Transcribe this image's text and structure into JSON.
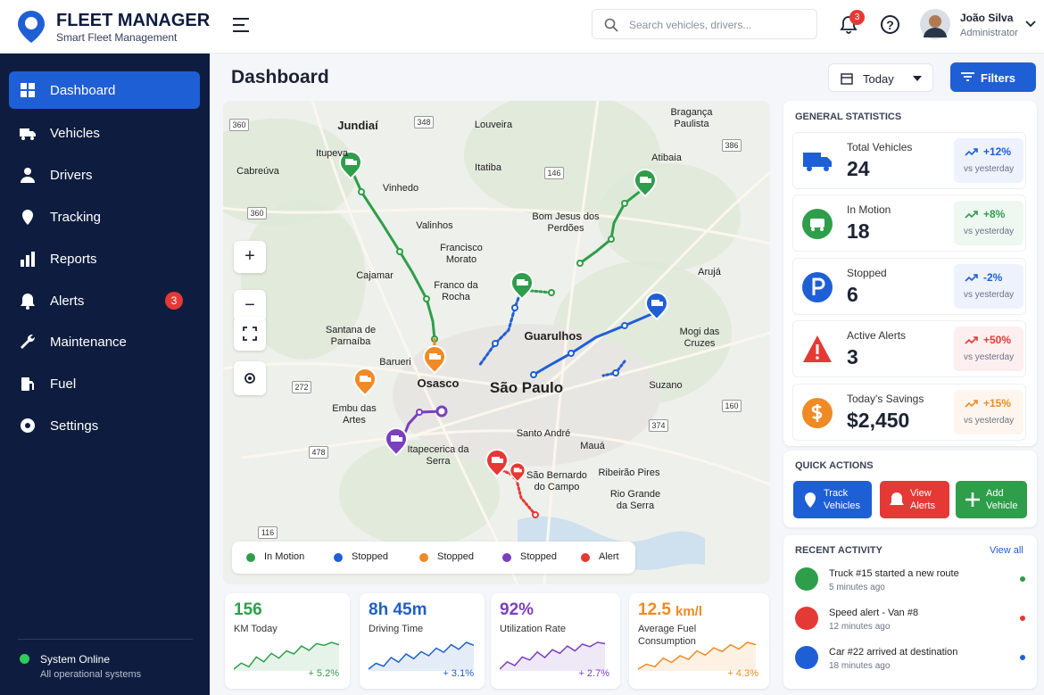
{
  "brand": {
    "title": "FLEET MANAGER",
    "subtitle": "Smart Fleet Management"
  },
  "header": {
    "search_placeholder": "Search vehicles, drivers...",
    "notifications": 3,
    "user_name": "João Silva",
    "user_role": "Administrator"
  },
  "nav": [
    {
      "label": "Dashboard"
    },
    {
      "label": "Vehicles"
    },
    {
      "label": "Drivers"
    },
    {
      "label": "Tracking"
    },
    {
      "label": "Reports"
    },
    {
      "label": "Alerts",
      "badge": 3
    },
    {
      "label": "Maintenance"
    },
    {
      "label": "Fuel"
    },
    {
      "label": "Settings"
    }
  ],
  "system_status": {
    "title": "System Online",
    "subtitle": "All operational systems"
  },
  "page_title": "Dashboard",
  "date_filter": "Today",
  "filters": "Filters",
  "map": {
    "places": [
      "Jundiaí",
      "Louveira",
      "Bragança Paulista",
      "Itupeva",
      "Cabreúva",
      "Itatiba",
      "Vinhedo",
      "Atibaia",
      "Valinhos",
      "Bom Jesus dos Perdões",
      "Francisco Morato",
      "Cajamar",
      "Arujá",
      "Franco da Rocha",
      "Santana de Parnaíba",
      "Guarulhos",
      "Mogi das Cruzes",
      "Barueri",
      "Osasco",
      "São Paulo",
      "Suzano",
      "Embu das Artes",
      "Itapecerica da Serra",
      "Santo André",
      "Mauá",
      "São Bernardo do Campo",
      "Ribeirão Pires",
      "Rio Grande da Serra"
    ],
    "roads": [
      360,
      348,
      146,
      386,
      360,
      272,
      160,
      374,
      478,
      116
    ],
    "legend": [
      {
        "label": "In Motion",
        "color": "#2e9e4a"
      },
      {
        "label": "Stopped",
        "color": "#1f5fd6"
      },
      {
        "label": "Stopped",
        "color": "#f08a24"
      },
      {
        "label": "Stopped",
        "color": "#7b3fbf"
      },
      {
        "label": "Alert",
        "color": "#e53935"
      }
    ]
  },
  "kpis": [
    {
      "value": "156",
      "label": "KM Today",
      "change": "+ 5.2%",
      "color": "#2e9e4a",
      "trend": [
        3,
        4,
        3.4,
        5,
        4.2,
        5.6,
        4.8,
        6,
        5.5,
        6.8,
        6.1,
        7.2,
        6.9,
        7.4,
        7
      ]
    },
    {
      "value": "8h 45m",
      "label": "Driving Time",
      "change": "+ 3.1%",
      "color": "#1f5fc9",
      "trend": [
        2,
        3,
        2.5,
        4,
        3.2,
        4.6,
        3.8,
        5,
        4.3,
        5.6,
        4.9,
        6.2,
        5.4,
        6.6,
        6.1
      ]
    },
    {
      "value": "92%",
      "label": "Utilization Rate",
      "change": "+ 2.7%",
      "color": "#7b3fbf",
      "trend": [
        2,
        3.2,
        2.6,
        4,
        3.5,
        4.8,
        3.9,
        5.2,
        4.6,
        5.8,
        5,
        6.1,
        5.7,
        6.4,
        6.2
      ]
    },
    {
      "value": "12.5",
      "unit": "km/l",
      "label": "Average Fuel Consumption",
      "change": "+ 4.3%",
      "color": "#f08a24",
      "trend": [
        2,
        2.8,
        2.4,
        3.8,
        3.1,
        4.2,
        3.6,
        5,
        4.3,
        5.5,
        4.9,
        6,
        5.3,
        6.4,
        6
      ]
    }
  ],
  "general_statistics": {
    "title": "GENERAL STATISTICS",
    "items": [
      {
        "label": "Total Vehicles",
        "value": "24",
        "change": "+12%",
        "note": "vs yesterday",
        "color": "#1f5fd6"
      },
      {
        "label": "In Motion",
        "value": "18",
        "change": "+8%",
        "note": "vs yesterday",
        "color": "#2e9e4a"
      },
      {
        "label": "Stopped",
        "value": "6",
        "change": "-2%",
        "note": "vs yesterday",
        "color": "#1f5fd6"
      },
      {
        "label": "Active Alerts",
        "value": "3",
        "change": "+50%",
        "note": "vs yesterday",
        "color": "#e53935"
      },
      {
        "label": "Today's Savings",
        "value": "$2,450",
        "change": "+15%",
        "note": "vs yesterday",
        "color": "#f08a24"
      }
    ]
  },
  "quick_actions": {
    "title": "QUICK ACTIONS",
    "buttons": [
      {
        "label": "Track Vehicles",
        "color": "#1f5fd6"
      },
      {
        "label": "View Alerts",
        "color": "#e53935"
      },
      {
        "label": "Add Vehicle",
        "color": "#2e9e4a"
      }
    ]
  },
  "recent_activity": {
    "title": "RECENT ACTIVITY",
    "view_all": "View all",
    "items": [
      {
        "text": "Truck #15 started a new route",
        "time": "5 minutes ago",
        "color": "#2e9e4a"
      },
      {
        "text": "Speed alert - Van #8",
        "time": "12 minutes ago",
        "color": "#e53935"
      },
      {
        "text": "Car #22 arrived at destination",
        "time": "18 minutes ago",
        "color": "#1f5fd6"
      }
    ]
  }
}
